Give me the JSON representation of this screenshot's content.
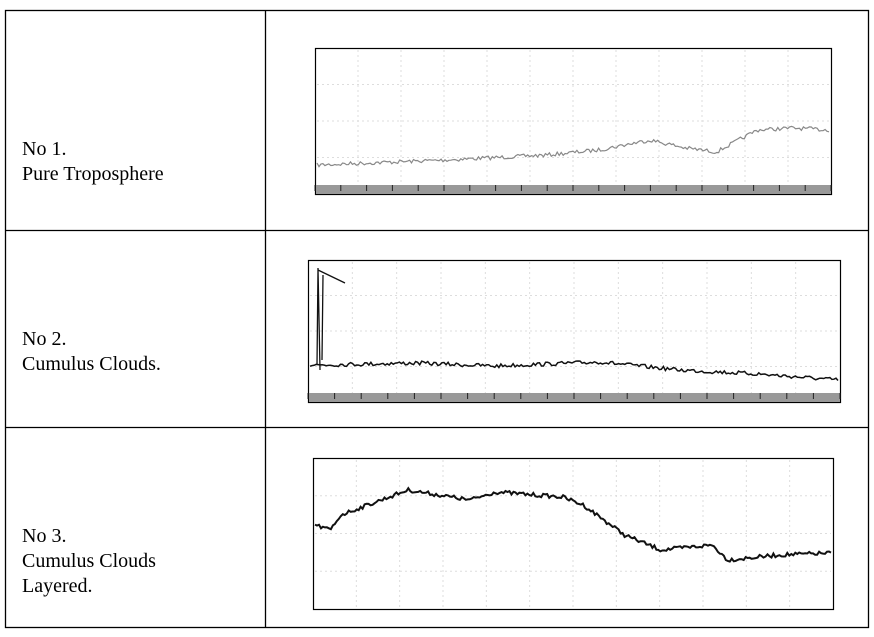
{
  "table": {
    "rows": [
      [
        "No 1.",
        "Pure Troposphere"
      ],
      [
        "No 2.",
        "Cumulus Clouds."
      ],
      [
        "No 3.",
        "Cumulus Clouds",
        "Layered."
      ]
    ]
  }
}
